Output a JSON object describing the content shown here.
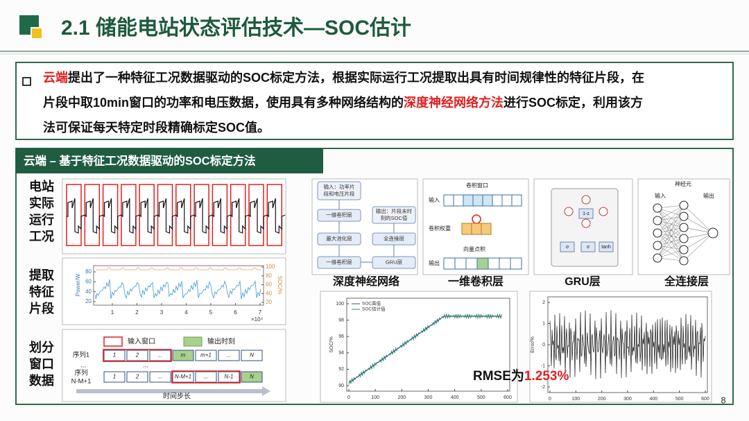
{
  "header": {
    "title": "2.1 储能电站状态评估技术—SOC估计"
  },
  "summary": {
    "lines": [
      [
        {
          "text": "云端",
          "highlight": true
        },
        {
          "text": "提出了一种特征工况数据驱动的SOC标定方法，根据实际运行工况提取出具有时间规律性的特征片段，在"
        }
      ],
      [
        {
          "text": "片段中取10min窗口的功率和电压数据，使用具有多种网络结构的"
        },
        {
          "text": "深度神经网络方法",
          "highlight": true
        },
        {
          "text": "进行SOC标定，利用该方"
        }
      ],
      [
        {
          "text": "法可保证每天特定时段精确标定SOC值。"
        }
      ]
    ]
  },
  "section": {
    "title": "云端 – 基于特征工况数据驱动的SOC标定方法",
    "steps": [
      [
        "电站",
        "实际",
        "运行",
        "工况"
      ],
      [
        "提取",
        "特征",
        "片段"
      ],
      [
        "划分",
        "窗口",
        "数据"
      ]
    ]
  },
  "feature_plot": {
    "y_label": "Power/W",
    "y2_label": "SOC/%",
    "yticks": [
      20,
      40,
      60,
      80
    ],
    "y2ticks": [
      20,
      40,
      60,
      80,
      100
    ],
    "xticks": [
      1,
      2,
      3,
      4,
      5,
      6,
      7
    ],
    "x_scale": "×10⁴"
  },
  "window_diagram": {
    "legend": [
      "输入窗口",
      "输出时刻"
    ],
    "ellipsis": "...",
    "rows": [
      {
        "name": [
          "序列1"
        ],
        "cells": [
          {
            "text": "1",
            "role": "input"
          },
          {
            "text": "2",
            "role": "input"
          },
          {
            "text": "...",
            "role": "input"
          },
          {
            "text": "m",
            "role": "output"
          },
          {
            "text": "m+1"
          },
          {
            "text": "..."
          },
          {
            "text": "N"
          }
        ]
      },
      {
        "name": [
          "序列",
          "N-M+1"
        ],
        "cells": [
          {
            "text": "1"
          },
          {
            "text": "2"
          },
          {
            "text": "..."
          },
          {
            "text": "N-M+1",
            "role": "input"
          },
          {
            "text": "...",
            "role": "input"
          },
          {
            "text": "N-1",
            "role": "input"
          },
          {
            "text": "N",
            "role": "output"
          }
        ]
      }
    ],
    "x_label": "时间步长"
  },
  "networks": {
    "dnn": {
      "caption": "深度神经网络",
      "nodes": [
        [
          "输入：功率片",
          "段和电压片段"
        ],
        [
          "一维卷积层"
        ],
        [
          "最大池化层"
        ],
        [
          "一维卷积层"
        ],
        [
          "输出：片段末时",
          "刻的SOC值"
        ],
        [
          "全连接层"
        ],
        [
          "GRU层"
        ]
      ]
    },
    "conv": {
      "caption": "一维卷积层",
      "labels": [
        "卷积窗口",
        "输入",
        "卷积权重",
        "向量点积",
        "输出"
      ]
    },
    "gru": {
      "caption": "GRU层",
      "labels": [
        "1-z",
        "σ",
        "σ",
        "tanh"
      ]
    },
    "fc": {
      "caption": "全连接层",
      "labels": [
        "神经元",
        "输入",
        "输出"
      ]
    }
  },
  "soc_plot": {
    "legend": [
      "SOC真值",
      "SOC估计值"
    ],
    "y_label": "SOC/%",
    "yticks": [
      90,
      92,
      94,
      96,
      98,
      100
    ],
    "xticks": [
      0,
      100,
      200,
      300,
      400,
      500,
      600
    ]
  },
  "error_plot": {
    "y_label": "Error/%",
    "yticks": [
      -2,
      -1,
      0,
      1,
      2
    ],
    "xticks": [
      0,
      100,
      200,
      300,
      400,
      500,
      600
    ]
  },
  "rmse": {
    "label": "RMSE为",
    "value": "1.253%"
  },
  "page_number": "8"
}
